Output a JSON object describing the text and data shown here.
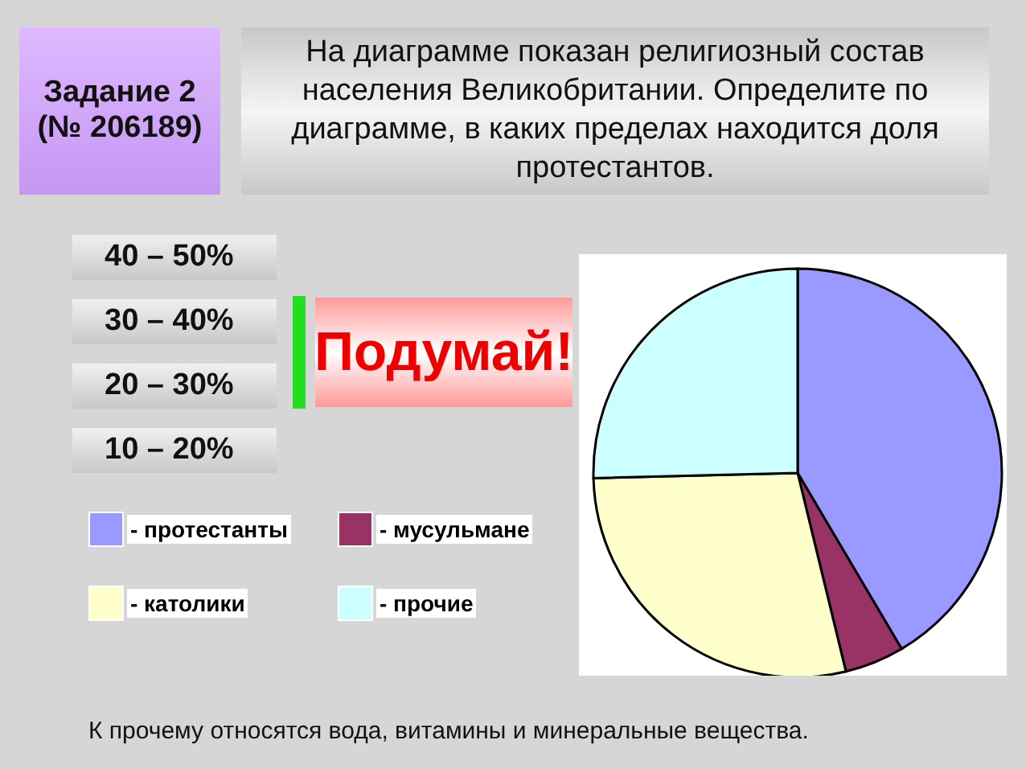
{
  "chart_data": {
    "type": "pie",
    "title": "На диаграмме показан религиозный состав населения Великобритании. Определите по диаграмме, в каких пределах находится доля протестантов.",
    "categories": [
      "- протестанты",
      "- мусульмане",
      "- католики",
      "- прочие"
    ],
    "values": [
      41.5,
      4.7,
      28.4,
      25.4
    ],
    "colors": [
      "#9999ff",
      "#993366",
      "#ffffcc",
      "#ccffff"
    ],
    "legend": "left",
    "annotations": [
      "Задание 2 (№ 206189)",
      "40 – 50%",
      "30 – 40%",
      "20 – 30%",
      "10 – 20%",
      "Подумай!",
      "К прочему относятся вода, витамины и минеральные вещества."
    ]
  }
}
